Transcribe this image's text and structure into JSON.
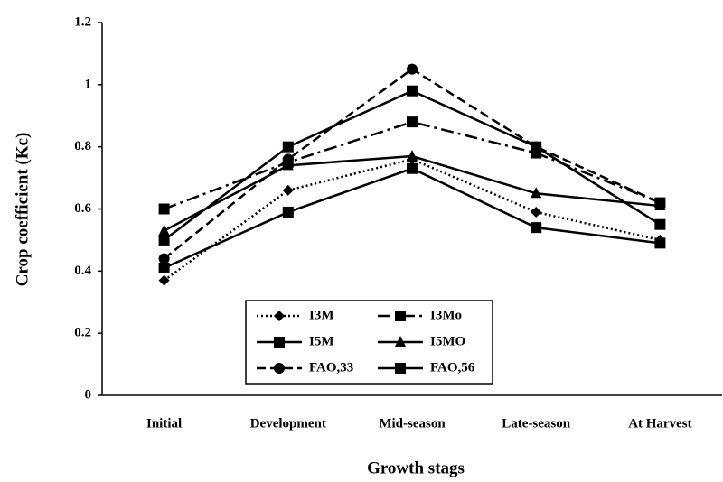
{
  "chart_data": {
    "type": "line",
    "xlabel": "Growth stags",
    "ylabel": "Crop coefficient (Kc)",
    "categories": [
      "Initial",
      "Development",
      "Mid-season",
      "Late-season",
      "At Harvest"
    ],
    "ylim": [
      0,
      1.2
    ],
    "yticks": [
      0,
      0.2,
      0.4,
      0.6,
      0.8,
      1,
      1.2
    ],
    "series": [
      {
        "name": "I3M",
        "color": "#000000",
        "dash": "2 3",
        "marker": "diamond",
        "values": [
          0.37,
          0.66,
          0.76,
          0.59,
          0.5
        ]
      },
      {
        "name": "I3Mo",
        "color": "#000000",
        "dash": "14 5 3 5",
        "marker": "square",
        "values": [
          0.6,
          0.75,
          0.88,
          0.78,
          0.62
        ]
      },
      {
        "name": "I5M",
        "color": "#000000",
        "dash": "none",
        "marker": "square",
        "values": [
          0.5,
          0.8,
          0.98,
          0.8,
          0.55
        ]
      },
      {
        "name": "I5MO",
        "color": "#000000",
        "dash": "none",
        "marker": "triangle",
        "values": [
          0.53,
          0.74,
          0.77,
          0.65,
          0.61
        ]
      },
      {
        "name": "FAO,33",
        "color": "#000000",
        "dash": "10 5",
        "marker": "circle",
        "values": [
          0.44,
          0.76,
          1.05,
          0.8,
          0.62
        ]
      },
      {
        "name": "FAO,56",
        "color": "#000000",
        "dash": "none",
        "marker": "square",
        "values": [
          0.41,
          0.59,
          0.73,
          0.54,
          0.49
        ]
      }
    ]
  }
}
